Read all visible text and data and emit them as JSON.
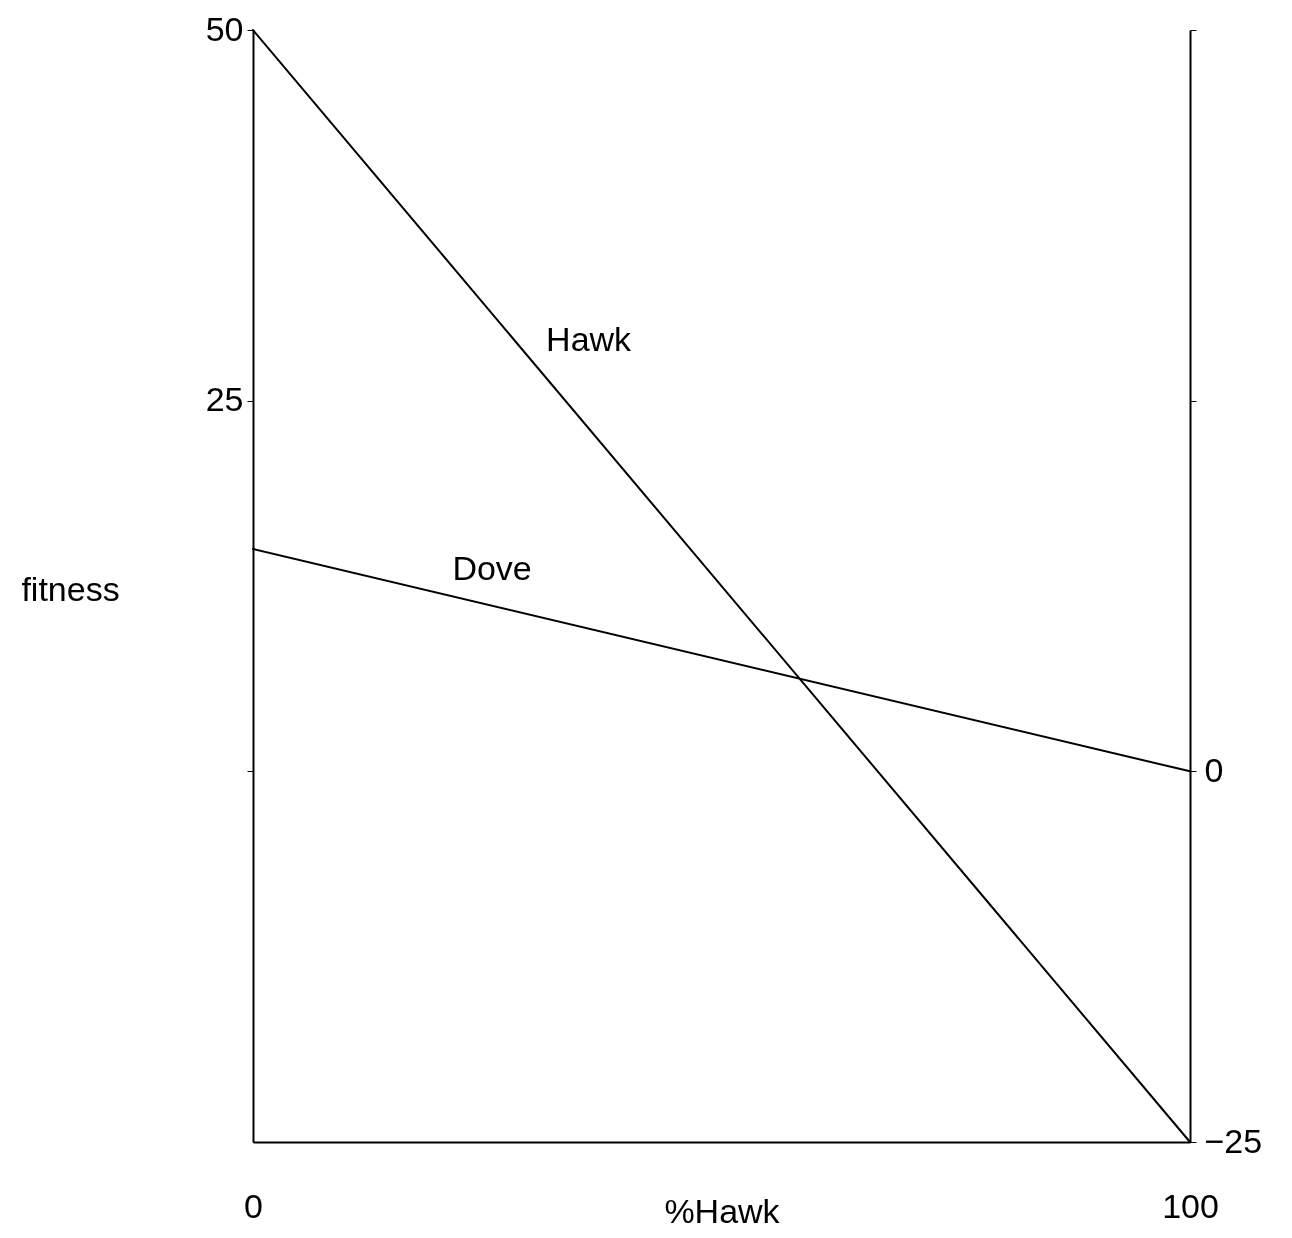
{
  "chart_data": {
    "type": "line",
    "xlabel": "%Hawk",
    "ylabel": "fitness",
    "x": [
      0,
      100
    ],
    "series": [
      {
        "name": "Hawk",
        "color": "#000000",
        "values": [
          50,
          -25
        ]
      },
      {
        "name": "Dove",
        "color": "#000000",
        "values": [
          15,
          0
        ]
      }
    ],
    "xlim": [
      0,
      100
    ],
    "xticks": [
      0,
      100
    ],
    "ylim": [
      -25,
      50
    ],
    "yticks": [
      {
        "value": 0,
        "label": null
      },
      25,
      50
    ],
    "y2lim": [
      -25,
      50
    ],
    "y2ticks": [
      -25,
      0,
      {
        "value": 25,
        "label": null
      },
      {
        "value": 50,
        "label": null
      }
    ],
    "grid": false,
    "legend": false,
    "marker": "none",
    "line_style": "solid"
  }
}
